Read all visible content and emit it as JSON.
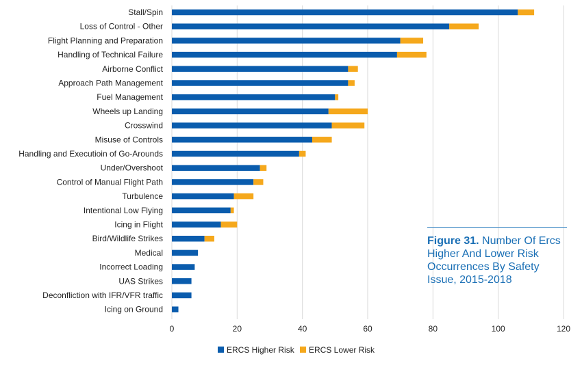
{
  "chart_data": {
    "type": "bar",
    "orientation": "horizontal",
    "stacked": true,
    "categories": [
      "Stall/Spin",
      "Loss of Control - Other",
      "Flight Planning and Preparation",
      "Handling of Technical Failure",
      "Airborne Conflict",
      "Approach Path Management",
      "Fuel Management",
      "Wheels up Landing",
      "Crosswind",
      "Misuse of Controls",
      "Handling and Executioin of Go-Arounds",
      "Under/Overshoot",
      "Control of Manual Flight Path",
      "Turbulence",
      "Intentional Low Flying",
      "Icing in Flight",
      "Bird/Wildlife Strikes",
      "Medical",
      "Incorrect Loading",
      "UAS  Strikes",
      "Deconfliction with IFR/VFR traffic",
      "Icing on Ground"
    ],
    "series": [
      {
        "name": "ERCS Higher Risk",
        "color": "#0a5cad",
        "values": [
          106,
          85,
          70,
          69,
          54,
          54,
          50,
          48,
          49,
          43,
          39,
          27,
          25,
          19,
          18,
          15,
          10,
          8,
          7,
          6,
          6,
          2
        ]
      },
      {
        "name": "ERCS Lower Risk",
        "color": "#f5a81c",
        "values": [
          5,
          9,
          7,
          9,
          3,
          2,
          1,
          12,
          10,
          6,
          2,
          2,
          3,
          6,
          1,
          5,
          3,
          0,
          0,
          0,
          0,
          0
        ]
      }
    ],
    "xlim": [
      0,
      120
    ],
    "xticks": [
      0,
      20,
      40,
      60,
      80,
      100,
      120
    ],
    "grid": "vertical",
    "legend": "bottom-center",
    "xlabel": "",
    "ylabel": ""
  },
  "caption": {
    "figure_number": "Figure 31.",
    "text": "Number Of Ercs Higher And Lower Risk Occurrences By Safety Issue, 2015-2018"
  }
}
